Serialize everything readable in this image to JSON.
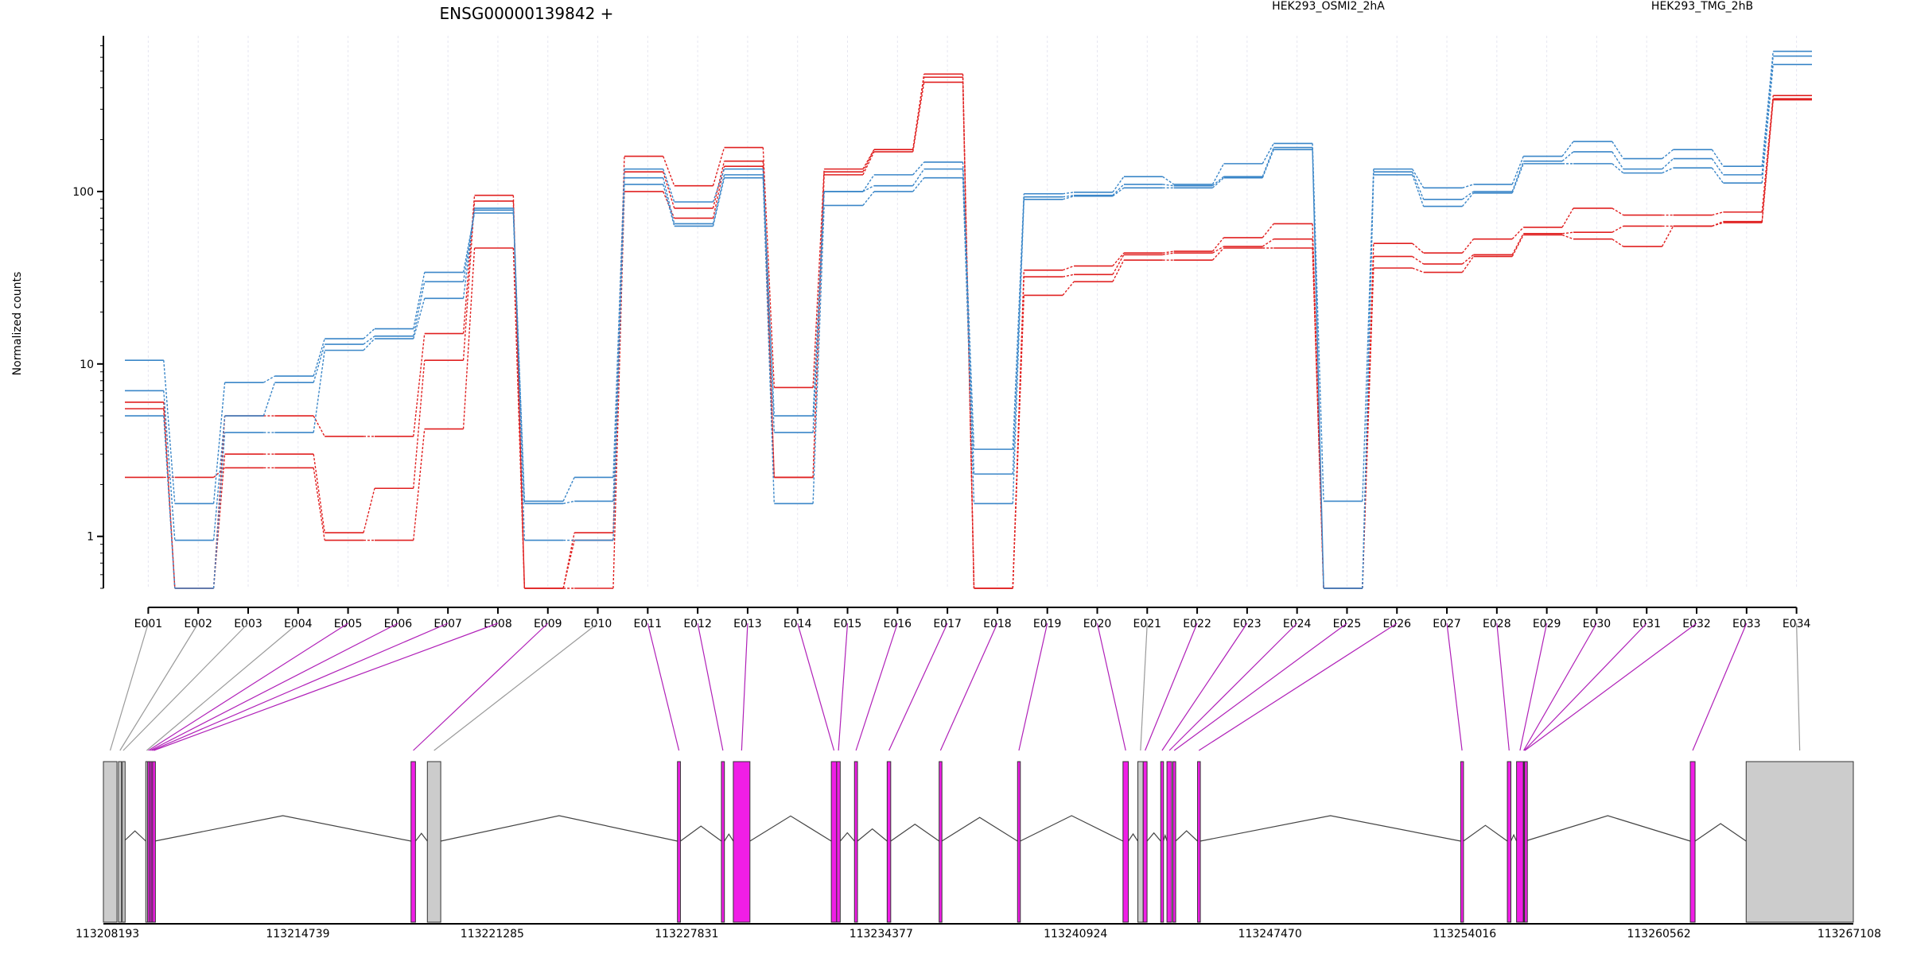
{
  "gene_title": "ENSG00000139842 +",
  "colors": {
    "treated": "#e02020",
    "control": "#3a86c8",
    "exon_highlight": "#f01ee6",
    "exon_plain": "#cccccc",
    "line_highlight": "#b020b8",
    "line_plain": "#9a9a9a"
  },
  "chart_data": {
    "type": "line",
    "title": "ENSG00000139842 +",
    "xlabel": "",
    "ylabel": "Normalized counts",
    "y_scale": "log",
    "ylim": [
      0.5,
      800
    ],
    "y_ticks": [
      1,
      10,
      100
    ],
    "y_tick_labels": [
      "1",
      "10",
      "100"
    ],
    "categories": [
      "E001",
      "E002",
      "E003",
      "E004",
      "E005",
      "E006",
      "E007",
      "E008",
      "E009",
      "E010",
      "E011",
      "E012",
      "E013",
      "E014",
      "E015",
      "E016",
      "E017",
      "E018",
      "E019",
      "E020",
      "E021",
      "E022",
      "E023",
      "E024",
      "E025",
      "E026",
      "E027",
      "E028",
      "E029",
      "E030",
      "E031",
      "E032",
      "E033",
      "E034"
    ],
    "legend": [
      {
        "label": "HEK293_OSMI2_2hA",
        "color": "#e02020"
      },
      {
        "label": "HEK293_TMG_2hB",
        "color": "#3a86c8"
      }
    ],
    "series": [
      {
        "group": "HEK293_OSMI2_2hA",
        "color": "#e02020",
        "values": [
          6,
          0.5,
          5,
          5,
          3.8,
          3.8,
          15,
          95,
          0.5,
          1.05,
          160,
          108,
          180,
          7.3,
          135,
          175,
          480,
          0.5,
          35,
          37,
          44,
          45,
          54,
          65,
          0.5,
          50,
          44,
          53,
          62,
          80,
          73,
          73,
          76,
          360
        ]
      },
      {
        "group": "HEK293_OSMI2_2hA",
        "color": "#e02020",
        "values": [
          5.5,
          0.5,
          3,
          3,
          1.05,
          1.9,
          10.5,
          88,
          0.5,
          0.95,
          130,
          80,
          150,
          2.2,
          130,
          175,
          460,
          0.5,
          32,
          33,
          43,
          44,
          48,
          53,
          0.5,
          42,
          38,
          43,
          57,
          58,
          63,
          63,
          67,
          345
        ]
      },
      {
        "group": "HEK293_OSMI2_2hA",
        "color": "#e02020",
        "values": [
          2.2,
          2.2,
          2.5,
          2.5,
          0.95,
          0.95,
          4.2,
          47,
          0.5,
          0.5,
          100,
          70,
          140,
          2.2,
          125,
          170,
          430,
          0.5,
          25,
          30,
          40,
          40,
          47,
          47,
          0.5,
          36,
          34,
          42,
          56,
          53,
          48,
          63,
          66,
          340
        ]
      },
      {
        "group": "HEK293_TMG_2hB",
        "color": "#3a86c8",
        "values": [
          10.5,
          1.55,
          7.8,
          8.5,
          14,
          16,
          34,
          75,
          1.6,
          2.2,
          135,
          87,
          135,
          5,
          100,
          125,
          148,
          3.2,
          97,
          99,
          122,
          110,
          145,
          190,
          1.6,
          135,
          105,
          110,
          160,
          195,
          155,
          175,
          140,
          650
        ]
      },
      {
        "group": "HEK293_TMG_2hB",
        "color": "#3a86c8",
        "values": [
          7,
          0.95,
          5,
          7.8,
          13,
          14.5,
          30,
          78,
          1.55,
          1.6,
          120,
          65,
          125,
          4,
          100,
          108,
          135,
          2.3,
          93,
          95,
          110,
          108,
          122,
          180,
          0.5,
          130,
          90,
          100,
          150,
          170,
          135,
          155,
          125,
          610
        ]
      },
      {
        "group": "HEK293_TMG_2hB",
        "color": "#3a86c8",
        "values": [
          5,
          0.5,
          4,
          4,
          12,
          14,
          24,
          80,
          0.95,
          0.95,
          110,
          63,
          120,
          1.55,
          83,
          100,
          120,
          1.55,
          90,
          94,
          105,
          105,
          120,
          175,
          0.5,
          125,
          82,
          98,
          145,
          145,
          128,
          137,
          112,
          545
        ]
      }
    ],
    "genomic_axis": {
      "range": [
        113208193,
        113267108
      ],
      "tick_labels": [
        "113208193",
        "113214739",
        "113221285",
        "113227831",
        "113234377",
        "113240924",
        "113247470",
        "113254016",
        "113260562",
        "113267108"
      ]
    },
    "exon_positions": [
      {
        "id": "E001",
        "start": 113208193,
        "end": 113208650,
        "highlight": false
      },
      {
        "id": "E002",
        "start": 113208700,
        "end": 113208800,
        "highlight": false
      },
      {
        "id": "E003",
        "start": 113208830,
        "end": 113208890,
        "highlight": false
      },
      {
        "id": "E004",
        "start": 113209620,
        "end": 113209680,
        "highlight": false
      },
      {
        "id": "E005",
        "start": 113209680,
        "end": 113209740,
        "highlight": true
      },
      {
        "id": "E006",
        "start": 113209740,
        "end": 113209800,
        "highlight": true
      },
      {
        "id": "E007",
        "start": 113209800,
        "end": 113209850,
        "highlight": true
      },
      {
        "id": "E008",
        "start": 113209850,
        "end": 113209920,
        "highlight": true
      },
      {
        "id": "E009",
        "start": 113218550,
        "end": 113218700,
        "highlight": true
      },
      {
        "id": "E010",
        "start": 113219100,
        "end": 113219550,
        "highlight": false
      },
      {
        "id": "E011",
        "start": 113227520,
        "end": 113227620,
        "highlight": true
      },
      {
        "id": "E012",
        "start": 113229000,
        "end": 113229100,
        "highlight": true
      },
      {
        "id": "E013",
        "start": 113229400,
        "end": 113229960,
        "highlight": true
      },
      {
        "id": "E014",
        "start": 113232700,
        "end": 113232880,
        "highlight": true
      },
      {
        "id": "E015",
        "start": 113232880,
        "end": 113233000,
        "highlight": true
      },
      {
        "id": "E016",
        "start": 113233480,
        "end": 113233580,
        "highlight": true
      },
      {
        "id": "E017",
        "start": 113234580,
        "end": 113234700,
        "highlight": true
      },
      {
        "id": "E018",
        "start": 113236330,
        "end": 113236420,
        "highlight": true
      },
      {
        "id": "E019",
        "start": 113238970,
        "end": 113239060,
        "highlight": true
      },
      {
        "id": "E020",
        "start": 113242520,
        "end": 113242700,
        "highlight": true
      },
      {
        "id": "E021",
        "start": 113243020,
        "end": 113243200,
        "highlight": false
      },
      {
        "id": "E022",
        "start": 113243200,
        "end": 113243330,
        "highlight": true
      },
      {
        "id": "E023",
        "start": 113243790,
        "end": 113243880,
        "highlight": true
      },
      {
        "id": "E024",
        "start": 113244000,
        "end": 113244160,
        "highlight": true
      },
      {
        "id": "E025",
        "start": 113244200,
        "end": 113244290,
        "highlight": true
      },
      {
        "id": "E026",
        "start": 113245030,
        "end": 113245120,
        "highlight": true
      },
      {
        "id": "E027",
        "start": 113253890,
        "end": 113253980,
        "highlight": true
      },
      {
        "id": "E028",
        "start": 113255460,
        "end": 113255580,
        "highlight": true
      },
      {
        "id": "E029",
        "start": 113255770,
        "end": 113256000,
        "highlight": true
      },
      {
        "id": "E030",
        "start": 113256000,
        "end": 113256020,
        "highlight": true
      },
      {
        "id": "E031",
        "start": 113256020,
        "end": 113256040,
        "highlight": true
      },
      {
        "id": "E032",
        "start": 113256040,
        "end": 113256060,
        "highlight": true
      },
      {
        "id": "E033",
        "start": 113261620,
        "end": 113261780,
        "highlight": true
      },
      {
        "id": "E034",
        "start": 113263500,
        "end": 113267108,
        "highlight": false
      }
    ]
  }
}
